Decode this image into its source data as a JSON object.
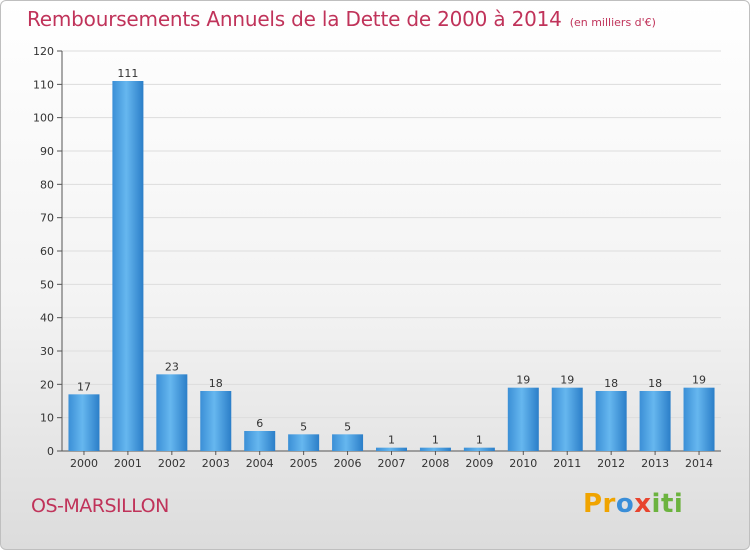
{
  "header": {
    "title": "Remboursements Annuels de la Dette de 2000 à 2014",
    "unit": "(en milliers d'€)"
  },
  "footer": {
    "commune": "OS-MARSILLON",
    "logo_text": "Proxiti"
  },
  "colors": {
    "accent": "#c0335a",
    "bar_light": "#63b4ee",
    "bar_dark": "#2a7dc9",
    "grid": "#dddddd"
  },
  "chart_data": {
    "type": "bar",
    "title": "Remboursements Annuels de la Dette de 2000 à 2014",
    "subtitle": "(en milliers d'€)",
    "xlabel": "",
    "ylabel": "",
    "categories": [
      "2000",
      "2001",
      "2002",
      "2003",
      "2004",
      "2005",
      "2006",
      "2007",
      "2008",
      "2009",
      "2010",
      "2011",
      "2012",
      "2013",
      "2014"
    ],
    "values": [
      17,
      111,
      23,
      18,
      6,
      5,
      5,
      1,
      1,
      1,
      19,
      19,
      18,
      18,
      19
    ],
    "data_labels": [
      "17",
      "111",
      "23",
      "18",
      "6",
      "5",
      "5",
      "1",
      "1",
      "1",
      "19",
      "19",
      "18",
      "18",
      "19"
    ],
    "ylim": [
      0,
      120
    ],
    "yticks": [
      0,
      10,
      20,
      30,
      40,
      50,
      60,
      70,
      80,
      90,
      100,
      110,
      120
    ],
    "grid": true,
    "legend": "none"
  }
}
